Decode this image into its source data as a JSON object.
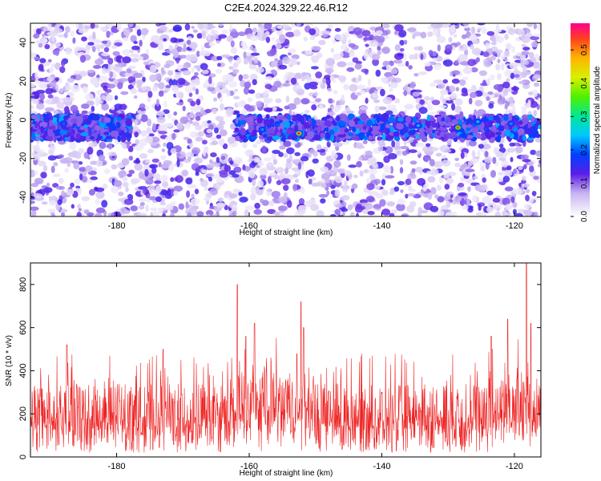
{
  "title": "C2E4.2024.329.22.46.R12",
  "chart_data": [
    {
      "type": "heatmap",
      "title": "C2E4.2024.329.22.46.R12",
      "xlabel": "Height of straight line (km)",
      "ylabel": "Frequency (Hz)",
      "xlim": [
        -193,
        -116
      ],
      "ylim": [
        -50,
        50
      ],
      "x_ticks": [
        -180,
        -160,
        -140,
        -120
      ],
      "y_ticks": [
        -40,
        -20,
        0,
        20,
        40
      ],
      "colorbar": {
        "label": "Normalized spectral amplitude",
        "range": [
          0.0,
          0.58
        ],
        "ticks": [
          0.0,
          0.1,
          0.2,
          0.3,
          0.4,
          0.5
        ]
      },
      "band": {
        "center_frequency": -4,
        "half_width": 6,
        "segments": [
          [
            -193,
            -178
          ],
          [
            -162,
            -116
          ]
        ]
      },
      "peaks": [
        {
          "x": -152.5,
          "y": -7,
          "amplitude": 0.55
        },
        {
          "x": -128.5,
          "y": -4,
          "amplitude": 0.52
        },
        {
          "x": -188,
          "y": -2,
          "amplitude": 0.2
        },
        {
          "x": -158,
          "y": -5,
          "amplitude": 0.22
        },
        {
          "x": -134.5,
          "y": -3,
          "amplitude": 0.24
        },
        {
          "x": -125.5,
          "y": -1,
          "amplitude": 0.25
        },
        {
          "x": -120.5,
          "y": -2,
          "amplitude": 0.22
        }
      ]
    },
    {
      "type": "line",
      "xlabel": "Height of straight line (km)",
      "ylabel": "SNR (10 * v/v)",
      "xlim": [
        -193,
        -116
      ],
      "ylim": [
        0,
        900
      ],
      "x_ticks": [
        -180,
        -160,
        -140,
        -120
      ],
      "y_ticks": [
        0,
        200,
        400,
        600,
        800
      ],
      "color": "#ee2222",
      "baseline": 180,
      "spikes": [
        {
          "x": -161.8,
          "y": 800
        },
        {
          "x": -160.5,
          "y": 560
        },
        {
          "x": -159.2,
          "y": 620
        },
        {
          "x": -152.2,
          "y": 720
        },
        {
          "x": -151.8,
          "y": 600
        },
        {
          "x": -123.5,
          "y": 560
        },
        {
          "x": -121.0,
          "y": 640
        },
        {
          "x": -118.2,
          "y": 900
        },
        {
          "x": -117.5,
          "y": 620
        },
        {
          "x": -187.5,
          "y": 520
        },
        {
          "x": -173.0,
          "y": 500
        }
      ]
    }
  ]
}
